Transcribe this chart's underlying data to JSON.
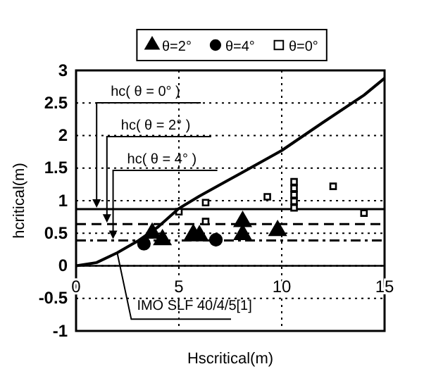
{
  "chart_data": {
    "type": "scatter",
    "xlabel": "Hscritical(m)",
    "ylabel": "hcritical(m)",
    "xlim": [
      0,
      15
    ],
    "ylim": [
      -1,
      3
    ],
    "xticks": [
      0,
      5,
      10,
      15
    ],
    "yticks": [
      -1,
      -0.5,
      0,
      0.5,
      1,
      1.5,
      2,
      2.5,
      3
    ],
    "grid": true,
    "legend": "top",
    "series": [
      {
        "name": "θ=2°",
        "marker": "triangle",
        "color": "#000000",
        "x": [
          3.7,
          4.2,
          5.7,
          6.0,
          8.1,
          8.1,
          9.8
        ],
        "values": [
          0.5,
          0.4,
          0.48,
          0.46,
          0.68,
          0.48,
          0.54
        ]
      },
      {
        "name": "θ=4°",
        "marker": "circle",
        "color": "#000000",
        "x": [
          3.3,
          6.8
        ],
        "values": [
          0.34,
          0.4
        ]
      },
      {
        "name": "θ=0°",
        "marker": "square",
        "color": "#000000",
        "x": [
          5.0,
          6.3,
          6.3,
          9.3,
          10.6,
          10.6,
          10.6,
          10.6,
          10.6,
          12.5,
          14.0
        ],
        "values": [
          0.83,
          0.97,
          0.68,
          1.06,
          1.29,
          1.19,
          1.09,
          0.99,
          0.89,
          1.22,
          0.81
        ]
      },
      {
        "name": "IMO SLF 40/4/5[1]",
        "type": "line",
        "marker": "none",
        "line_style": "solid",
        "color": "#000000",
        "x": [
          0,
          1,
          2,
          3,
          4,
          5,
          6,
          8,
          10,
          12,
          14,
          15
        ],
        "values": [
          0,
          0.05,
          0.2,
          0.38,
          0.6,
          0.88,
          1.07,
          1.42,
          1.77,
          2.2,
          2.62,
          2.88
        ]
      }
    ],
    "ref_lines": [
      {
        "axis": "y",
        "value": 0.87,
        "line_style": "solid",
        "color": "#000000"
      },
      {
        "axis": "y",
        "value": 0.64,
        "line_style": "dashed",
        "color": "#000000"
      },
      {
        "axis": "y",
        "value": 0.39,
        "line_style": "dotted",
        "color": "#000000"
      }
    ],
    "annotations": [
      {
        "text": "hc( θ = 0°  )",
        "x": 1,
        "y": 0.87
      },
      {
        "text": "hc( θ = 2°  )",
        "x": 1.5,
        "y": 0.64
      },
      {
        "text": "hc( θ =  4°  )",
        "x": 1.8,
        "y": 0.39
      }
    ]
  }
}
